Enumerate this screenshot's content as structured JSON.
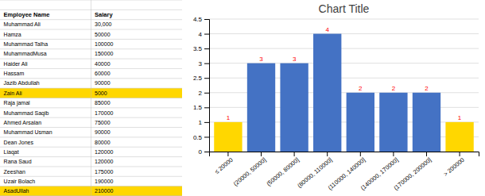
{
  "chart_data": {
    "type": "bar",
    "title": "Chart Title",
    "categories": [
      "≤ 20000",
      "(20000, 50000]",
      "(50000, 80000]",
      "(80000, 110000]",
      "(110000, 140000]",
      "(140000, 170000]",
      "(170000, 200000]",
      "> 200000"
    ],
    "values": [
      1,
      3,
      3,
      4,
      2,
      2,
      2,
      1
    ],
    "colors": [
      "#FFD700",
      "#4472C4",
      "#4472C4",
      "#4472C4",
      "#4472C4",
      "#4472C4",
      "#4472C4",
      "#FFD700"
    ],
    "ylim": [
      0,
      4.5
    ],
    "yticks": [
      0,
      0.5,
      1,
      1.5,
      2,
      2.5,
      3,
      3.5,
      4,
      4.5
    ],
    "grid": true,
    "data_labels": true,
    "table": {
      "columns": [
        "Employee Name",
        "Salary"
      ],
      "rows": [
        [
          "Muhammad Ali",
          "30,000"
        ],
        [
          "Hamza",
          "50000"
        ],
        [
          "Muhammad Talha",
          "100000"
        ],
        [
          "MuhammadMusa",
          "150000"
        ],
        [
          "Haider Ali",
          "40000"
        ],
        [
          "Hassam",
          "60000"
        ],
        [
          "Jazib Abdullah",
          "90000"
        ],
        [
          "Zain Ali",
          "5000"
        ],
        [
          "Raja jamal",
          "85000"
        ],
        [
          "Muhammad Saqib",
          "170000"
        ],
        [
          "Ahmed Arsalan",
          "75000"
        ],
        [
          "Muhammad Usman",
          "90000"
        ],
        [
          "Dean Jones",
          "80000"
        ],
        [
          "Liaqat",
          "120000"
        ],
        [
          "Rana Saud",
          "120000"
        ],
        [
          "Zeeshan",
          "175000"
        ],
        [
          "Uzair Bolach",
          "190000"
        ],
        [
          "AsadUllah",
          "210000"
        ]
      ],
      "colors": [
        null,
        null,
        null,
        null,
        null,
        null,
        null,
        "#FFD700",
        null,
        null,
        null,
        null,
        null,
        null,
        null,
        null,
        null,
        "#FFD700"
      ]
    }
  }
}
